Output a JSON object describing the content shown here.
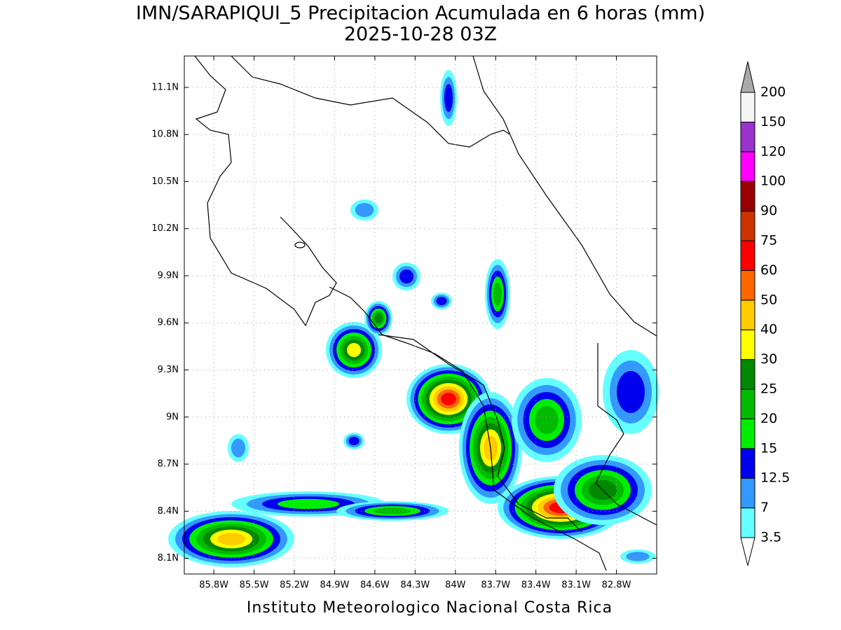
{
  "title": "IMN/SARAPIQUI_5 Precipitacion Acumulada en 6 horas (mm)",
  "subtitle": "2025-10-28 03Z",
  "footer": "Instituto Meteorologico Nacional Costa Rica",
  "map": {
    "lonlim": [
      -86.02,
      -82.5
    ],
    "latlim": [
      8.0,
      11.3
    ],
    "xticks": [
      {
        "value": -85.8,
        "label": "85.8W"
      },
      {
        "value": -85.5,
        "label": "85.5W"
      },
      {
        "value": -85.2,
        "label": "85.2W"
      },
      {
        "value": -84.9,
        "label": "84.9W"
      },
      {
        "value": -84.6,
        "label": "84.6W"
      },
      {
        "value": -84.3,
        "label": "84.3W"
      },
      {
        "value": -84.0,
        "label": "84W"
      },
      {
        "value": -83.7,
        "label": "83.7W"
      },
      {
        "value": -83.4,
        "label": "83.4W"
      },
      {
        "value": -83.1,
        "label": "83.1W"
      },
      {
        "value": -82.8,
        "label": "82.8W"
      }
    ],
    "yticks": [
      {
        "value": 8.1,
        "label": "8.1N"
      },
      {
        "value": 8.4,
        "label": "8.4N"
      },
      {
        "value": 8.7,
        "label": "8.7N"
      },
      {
        "value": 9.0,
        "label": "9N"
      },
      {
        "value": 9.3,
        "label": "9.3N"
      },
      {
        "value": 9.6,
        "label": "9.6N"
      },
      {
        "value": 9.9,
        "label": "9.9N"
      },
      {
        "value": 10.2,
        "label": "10.2N"
      },
      {
        "value": 10.5,
        "label": "10.5N"
      },
      {
        "value": 10.8,
        "label": "10.8N"
      },
      {
        "value": 11.1,
        "label": "11.1N"
      }
    ],
    "grid": true
  },
  "colorbar": {
    "levels": [
      3.5,
      7,
      12.5,
      15,
      20,
      25,
      30,
      40,
      50,
      60,
      75,
      90,
      100,
      120,
      150,
      200
    ],
    "colors": [
      "#ffffff",
      "#66ffff",
      "#3399ff",
      "#0000ee",
      "#00ee00",
      "#00bb00",
      "#008800",
      "#ffff00",
      "#ffcc00",
      "#ff6600",
      "#ff0000",
      "#cc3300",
      "#990000",
      "#ff00ff",
      "#9933cc",
      "#f5f5f5",
      "#aaaaaa"
    ]
  }
}
